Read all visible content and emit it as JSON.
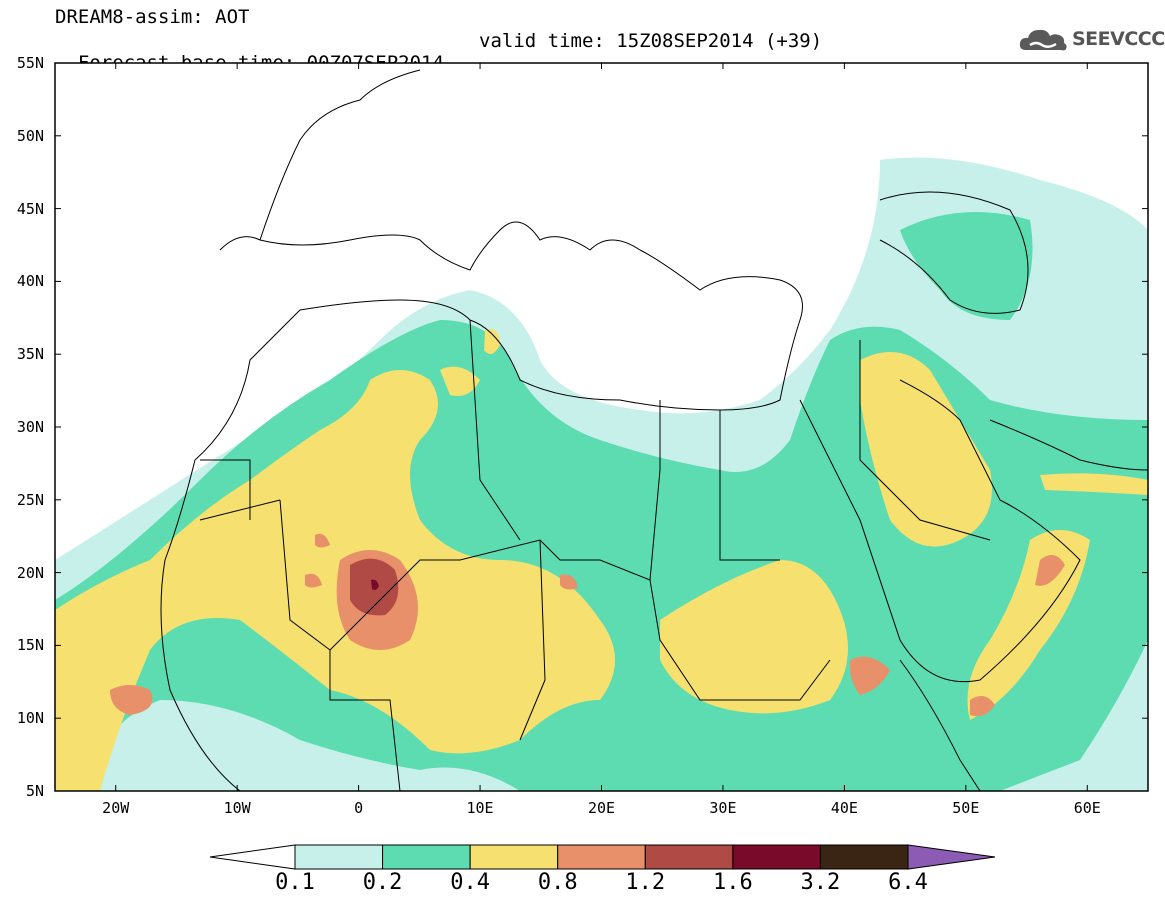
{
  "header": {
    "title_line1": "DREAM8-assim: AOT",
    "title_line2": "Forecast base time: 00Z07SEP2014",
    "valid_time": "valid time: 15Z08SEP2014 (+39)"
  },
  "logo": {
    "text": "SEEVCCC",
    "icon": "cloud-icon"
  },
  "map": {
    "lat_range": [
      5,
      55
    ],
    "lon_range": [
      -25,
      65
    ],
    "lat_ticks": [
      "55N",
      "50N",
      "45N",
      "40N",
      "35N",
      "30N",
      "25N",
      "20N",
      "15N",
      "10N",
      "5N"
    ],
    "lon_ticks": [
      "20W",
      "10W",
      "0",
      "10E",
      "20E",
      "30E",
      "40E",
      "50E",
      "60E"
    ],
    "lon_tick_values": [
      -20,
      -10,
      0,
      10,
      20,
      30,
      40,
      50,
      60
    ]
  },
  "colorbar": {
    "labels": [
      "0.1",
      "0.2",
      "0.4",
      "0.8",
      "1.2",
      "1.6",
      "3.2",
      "6.4"
    ],
    "colors": [
      "#c8f0ea",
      "#5cdcb0",
      "#f5e070",
      "#e8906a",
      "#b04a44",
      "#7a0a2a",
      "#3a2414",
      "#8c5cb4"
    ]
  }
}
